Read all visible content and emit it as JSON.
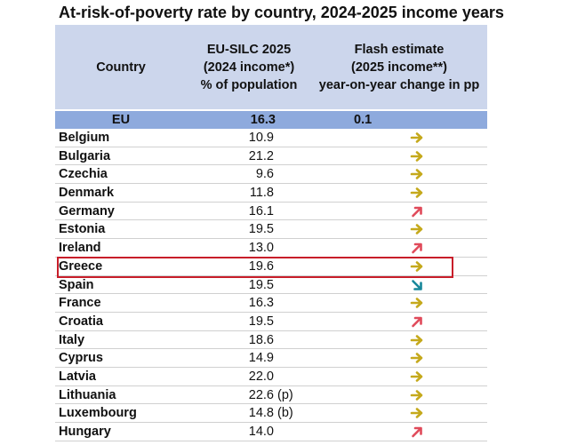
{
  "title": "At-risk-of-poverty rate by country, 2024-2025 income years",
  "header": {
    "country": "Country",
    "col2": [
      "EU-SILC 2025",
      "(2024 income*)",
      "% of population"
    ],
    "col3": [
      "Flash estimate",
      "(2025 income**)",
      "year-on-year change in pp"
    ]
  },
  "eu": {
    "name": "EU",
    "value": "16.3",
    "change": "0.1"
  },
  "colors": {
    "header_bg": "#ccd6ec",
    "eu_bg": "#8eaadd",
    "flat": "#c5a91c",
    "up": "#e04a5a",
    "down": "#17879a",
    "highlight": "#c81e2a"
  },
  "highlighted_country": "Greece",
  "rows": [
    {
      "name": "Belgium",
      "value": "10.9",
      "flag": "",
      "trend": "flat"
    },
    {
      "name": "Bulgaria",
      "value": "21.2",
      "flag": "",
      "trend": "flat"
    },
    {
      "name": "Czechia",
      "value": "9.6",
      "flag": "",
      "trend": "flat"
    },
    {
      "name": "Denmark",
      "value": "11.8",
      "flag": "",
      "trend": "flat"
    },
    {
      "name": "Germany",
      "value": "16.1",
      "flag": "",
      "trend": "up"
    },
    {
      "name": "Estonia",
      "value": "19.5",
      "flag": "",
      "trend": "flat"
    },
    {
      "name": "Ireland",
      "value": "13.0",
      "flag": "",
      "trend": "up"
    },
    {
      "name": "Greece",
      "value": "19.6",
      "flag": "",
      "trend": "flat"
    },
    {
      "name": "Spain",
      "value": "19.5",
      "flag": "",
      "trend": "down"
    },
    {
      "name": "France",
      "value": "16.3",
      "flag": "",
      "trend": "flat"
    },
    {
      "name": "Croatia",
      "value": "19.5",
      "flag": "",
      "trend": "up"
    },
    {
      "name": "Italy",
      "value": "18.6",
      "flag": "",
      "trend": "flat"
    },
    {
      "name": "Cyprus",
      "value": "14.9",
      "flag": "",
      "trend": "flat"
    },
    {
      "name": "Latvia",
      "value": "22.0",
      "flag": "",
      "trend": "flat"
    },
    {
      "name": "Lithuania",
      "value": "22.6",
      "flag": "(p)",
      "trend": "flat"
    },
    {
      "name": "Luxembourg",
      "value": "14.8",
      "flag": "(b)",
      "trend": "flat"
    },
    {
      "name": "Hungary",
      "value": "14.0",
      "flag": "",
      "trend": "up"
    }
  ]
}
